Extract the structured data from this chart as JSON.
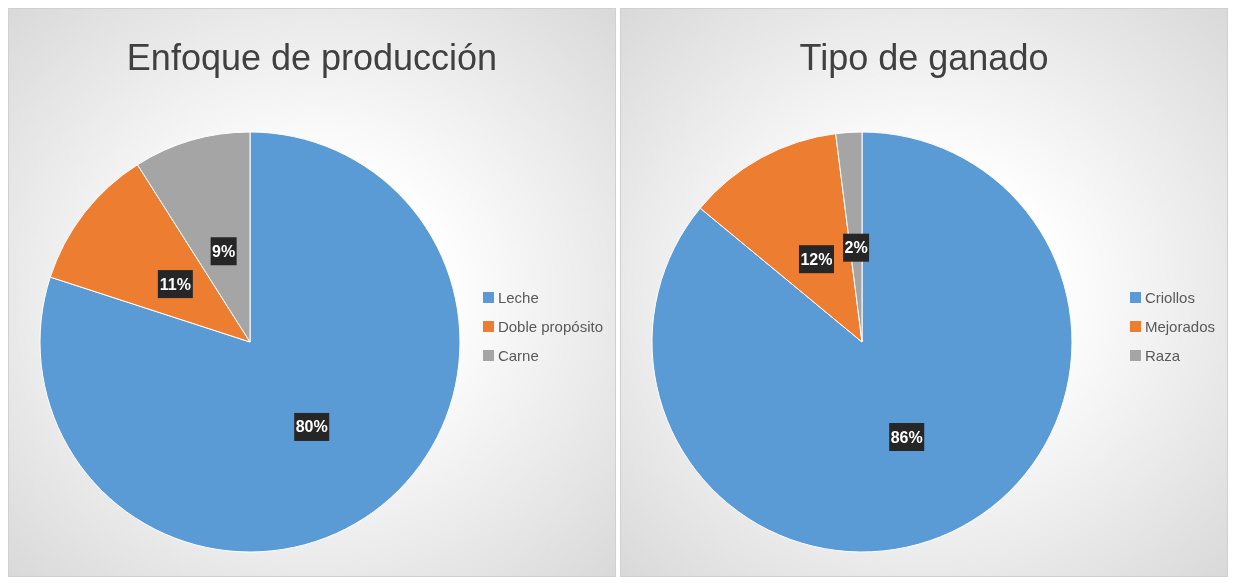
{
  "chart_data": [
    {
      "type": "pie",
      "title": "Enfoque de producción",
      "categories": [
        "Leche",
        "Doble propósito",
        "Carne"
      ],
      "values": [
        80,
        11,
        9
      ],
      "colors": [
        "#5b9bd5",
        "#ed7d31",
        "#a5a5a5"
      ],
      "value_labels": [
        "80%",
        "11%",
        "9%"
      ],
      "legend": "right"
    },
    {
      "type": "pie",
      "title": "Tipo de ganado",
      "categories": [
        "Criollos",
        "Mejorados",
        "Raza"
      ],
      "values": [
        86,
        12,
        2
      ],
      "colors": [
        "#5b9bd5",
        "#ed7d31",
        "#a5a5a5"
      ],
      "value_labels": [
        "86%",
        "12%",
        "2%"
      ],
      "legend": "right"
    }
  ]
}
